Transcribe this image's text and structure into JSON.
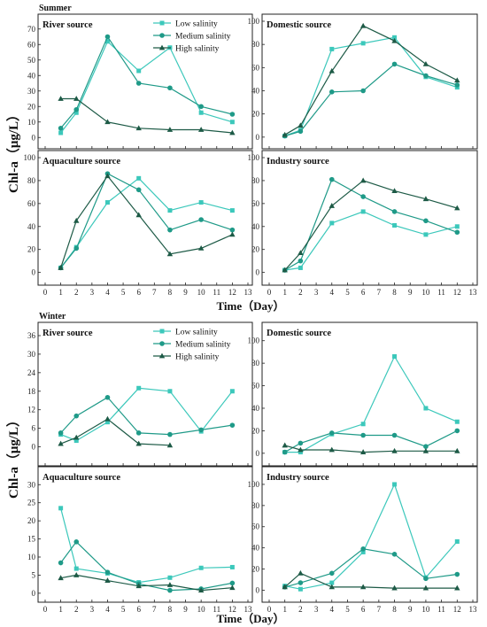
{
  "colors": {
    "low": "#3cc8bb",
    "medium": "#1f9a88",
    "high": "#1d5a46"
  },
  "markers": {
    "low": "square",
    "medium": "circle",
    "high": "triangle"
  },
  "x_tick_labels": [
    "0",
    "1",
    "2",
    "3",
    "4",
    "5",
    "6",
    "7",
    "8",
    "9",
    "10",
    "11",
    "12",
    "13"
  ],
  "chart_data": [
    {
      "type": "line",
      "section": "Summer",
      "title": "River source",
      "x": [
        1,
        2,
        4,
        6,
        8,
        10,
        12
      ],
      "xlim": [
        0,
        13
      ],
      "ylim": [
        -5,
        75
      ],
      "yticks": [
        0,
        10,
        20,
        30,
        40,
        50,
        60,
        70
      ],
      "xlabel": "",
      "ylabel": "",
      "legend": "top-right",
      "series": [
        {
          "key": "low",
          "name": "Low salinity",
          "values": [
            3,
            16,
            62,
            43,
            58,
            16,
            10
          ]
        },
        {
          "key": "medium",
          "name": "Medium salinity",
          "values": [
            6,
            18,
            65,
            35,
            32,
            20,
            15
          ]
        },
        {
          "key": "high",
          "name": "High salinity",
          "values": [
            25,
            25,
            10,
            6,
            5,
            5,
            3
          ]
        }
      ]
    },
    {
      "type": "line",
      "section": "Summer",
      "title": "Domestic source",
      "x": [
        1,
        2,
        4,
        6,
        8,
        10,
        12
      ],
      "xlim": [
        0,
        13
      ],
      "ylim": [
        -7,
        100
      ],
      "yticks": [
        0,
        20,
        40,
        60,
        80,
        100
      ],
      "xlabel": "",
      "ylabel": "",
      "series": [
        {
          "key": "low",
          "name": "",
          "values": [
            1,
            6,
            76,
            81,
            86,
            52,
            43
          ]
        },
        {
          "key": "medium",
          "name": "",
          "values": [
            1,
            5,
            39,
            40,
            63,
            53,
            45
          ]
        },
        {
          "key": "high",
          "name": "",
          "values": [
            2,
            10,
            57,
            96,
            83,
            63,
            49
          ]
        }
      ]
    },
    {
      "type": "line",
      "section": "Summer",
      "title": "Aquaculture source",
      "x": [
        1,
        2,
        4,
        6,
        8,
        10,
        12
      ],
      "xlim": [
        0,
        13
      ],
      "ylim": [
        -8,
        100
      ],
      "yticks": [
        0,
        20,
        40,
        60,
        80,
        100
      ],
      "xlabel": "",
      "ylabel": "",
      "series": [
        {
          "key": "low",
          "name": "",
          "values": [
            4,
            22,
            61,
            82,
            54,
            61,
            54
          ]
        },
        {
          "key": "medium",
          "name": "",
          "values": [
            4,
            21,
            86,
            72,
            37,
            46,
            37
          ]
        },
        {
          "key": "high",
          "name": "",
          "values": [
            4,
            45,
            84,
            50,
            16,
            21,
            33
          ]
        }
      ]
    },
    {
      "type": "line",
      "section": "Summer",
      "title": "Industry source",
      "x": [
        1,
        2,
        4,
        6,
        8,
        10,
        12
      ],
      "xlim": [
        0,
        13
      ],
      "ylim": [
        -8,
        100
      ],
      "yticks": [
        0,
        20,
        40,
        60,
        80,
        100
      ],
      "xlabel": "",
      "ylabel": "",
      "series": [
        {
          "key": "low",
          "name": "",
          "values": [
            2,
            4,
            43,
            53,
            41,
            33,
            40
          ]
        },
        {
          "key": "medium",
          "name": "",
          "values": [
            2,
            10,
            81,
            66,
            53,
            45,
            35
          ]
        },
        {
          "key": "high",
          "name": "",
          "values": [
            2,
            17,
            58,
            80,
            71,
            64,
            56
          ]
        }
      ]
    },
    {
      "type": "line",
      "section": "Winter",
      "title": "River source",
      "x": [
        1,
        2,
        4,
        6,
        8,
        10,
        12
      ],
      "xlim": [
        0,
        13
      ],
      "ylim": [
        -5,
        38
      ],
      "yticks": [
        0,
        6,
        12,
        18,
        24,
        30,
        36
      ],
      "xlabel": "",
      "ylabel": "",
      "legend": "top-right",
      "series": [
        {
          "key": "low",
          "name": "Low salinity",
          "values": [
            4,
            2,
            8,
            19,
            18,
            5,
            18
          ]
        },
        {
          "key": "medium",
          "name": "Medium salinity",
          "values": [
            4.5,
            10,
            16,
            4.5,
            4,
            5.5,
            7
          ]
        },
        {
          "key": "high",
          "name": "High salinity",
          "values": [
            1,
            3,
            9,
            1,
            0.5,
            null,
            null
          ]
        }
      ]
    },
    {
      "type": "line",
      "section": "Winter",
      "title": "Domestic source",
      "x": [
        1,
        2,
        4,
        6,
        8,
        10,
        12
      ],
      "xlim": [
        0,
        13
      ],
      "ylim": [
        -8,
        110
      ],
      "yticks": [
        0,
        20,
        40,
        60,
        80,
        100
      ],
      "xlabel": "",
      "ylabel": "",
      "series": [
        {
          "key": "low",
          "name": "",
          "values": [
            1,
            1,
            17,
            26,
            86,
            40,
            28
          ]
        },
        {
          "key": "medium",
          "name": "",
          "values": [
            1,
            9,
            18,
            16,
            16,
            6,
            20
          ]
        },
        {
          "key": "high",
          "name": "",
          "values": [
            7,
            3,
            3,
            1,
            2,
            2,
            2
          ]
        }
      ]
    },
    {
      "type": "line",
      "section": "Winter",
      "title": "Aquaculture source",
      "x": [
        1,
        2,
        4,
        6,
        8,
        10,
        12
      ],
      "xlim": [
        0,
        13
      ],
      "ylim": [
        -1.5,
        33
      ],
      "yticks": [
        0,
        5,
        10,
        15,
        20,
        25,
        30
      ],
      "xlabel": "",
      "ylabel": "",
      "series": [
        {
          "key": "low",
          "name": "",
          "values": [
            23.5,
            6.8,
            5.5,
            3,
            4.3,
            7,
            7.2
          ]
        },
        {
          "key": "medium",
          "name": "",
          "values": [
            8.4,
            14.2,
            5.8,
            2.6,
            0.8,
            1.2,
            2.8
          ]
        },
        {
          "key": "high",
          "name": "",
          "values": [
            4.2,
            5,
            3.5,
            2,
            2.3,
            0.8,
            1.5
          ]
        }
      ]
    },
    {
      "type": "line",
      "section": "Winter",
      "title": "Industry source",
      "x": [
        1,
        2,
        4,
        6,
        8,
        10,
        12
      ],
      "xlim": [
        0,
        13
      ],
      "ylim": [
        -8,
        110
      ],
      "yticks": [
        0,
        20,
        40,
        60,
        80,
        100
      ],
      "xlabel": "",
      "ylabel": "",
      "series": [
        {
          "key": "low",
          "name": "",
          "values": [
            4,
            1,
            7,
            36,
            100,
            12,
            46
          ]
        },
        {
          "key": "medium",
          "name": "",
          "values": [
            3,
            7,
            16,
            39,
            34,
            11,
            15
          ]
        },
        {
          "key": "high",
          "name": "",
          "values": [
            3,
            16,
            3,
            3,
            2,
            2,
            2
          ]
        }
      ]
    }
  ],
  "labels": {
    "summer": "Summer",
    "winter": "Winter",
    "ylabel_summer": "Chl-a（μg/L）",
    "ylabel_winter": "Chl-a（μg/L）",
    "xlabel_summer": "Time（Day）",
    "xlabel_winter": "Time（Day）"
  }
}
